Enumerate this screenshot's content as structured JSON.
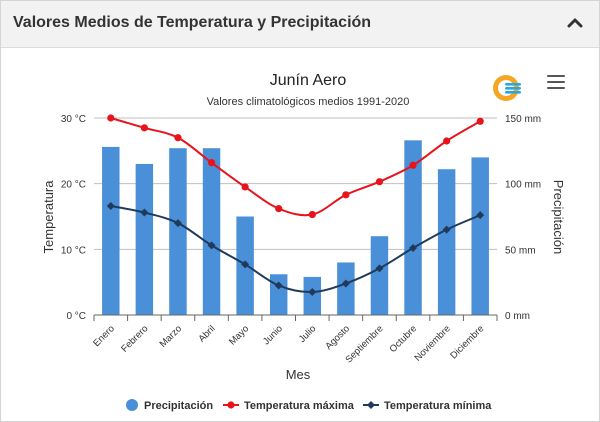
{
  "header": {
    "title": "Valores Medios de Temperatura y Precipitación"
  },
  "chart_data": {
    "type": "bar",
    "title": "Junín Aero",
    "subtitle": "Valores climatológicos medios 1991-2020",
    "xlabel": "Mes",
    "ylabel_left": "Temperatura",
    "ylabel_right": "Precipitación",
    "categories": [
      "Enero",
      "Febrero",
      "Marzo",
      "Abril",
      "Mayo",
      "Junio",
      "Julio",
      "Agosto",
      "Septiembre",
      "Octubre",
      "Noviembre",
      "Diciembre"
    ],
    "left_axis": {
      "ylim": [
        0,
        30
      ],
      "ticks": [
        0,
        10,
        20,
        30
      ],
      "tick_labels": [
        "0 °C",
        "10 °C",
        "20 °C",
        "30 °C"
      ]
    },
    "right_axis": {
      "ylim": [
        0,
        150
      ],
      "ticks": [
        0,
        50,
        100,
        150
      ],
      "tick_labels": [
        "0 mm",
        "50 mm",
        "100 mm",
        "150 mm"
      ]
    },
    "grid": true,
    "legend_position": "bottom",
    "series": [
      {
        "name": "Precipitación",
        "type": "bar",
        "axis": "right",
        "color": "#4a90d9",
        "values": [
          128,
          115,
          127,
          127,
          75,
          31,
          29,
          40,
          60,
          133,
          111,
          120
        ]
      },
      {
        "name": "Temperatura máxima",
        "type": "line",
        "axis": "left",
        "color": "#e8141c",
        "values": [
          30.0,
          28.5,
          27.0,
          23.2,
          19.5,
          16.2,
          15.3,
          18.3,
          20.3,
          22.8,
          26.5,
          29.5
        ]
      },
      {
        "name": "Temperatura mínima",
        "type": "line",
        "axis": "left",
        "color": "#1f3a5a",
        "values": [
          16.6,
          15.6,
          14.0,
          10.6,
          7.7,
          4.5,
          3.5,
          4.8,
          7.1,
          10.2,
          13.0,
          15.2
        ]
      }
    ]
  }
}
